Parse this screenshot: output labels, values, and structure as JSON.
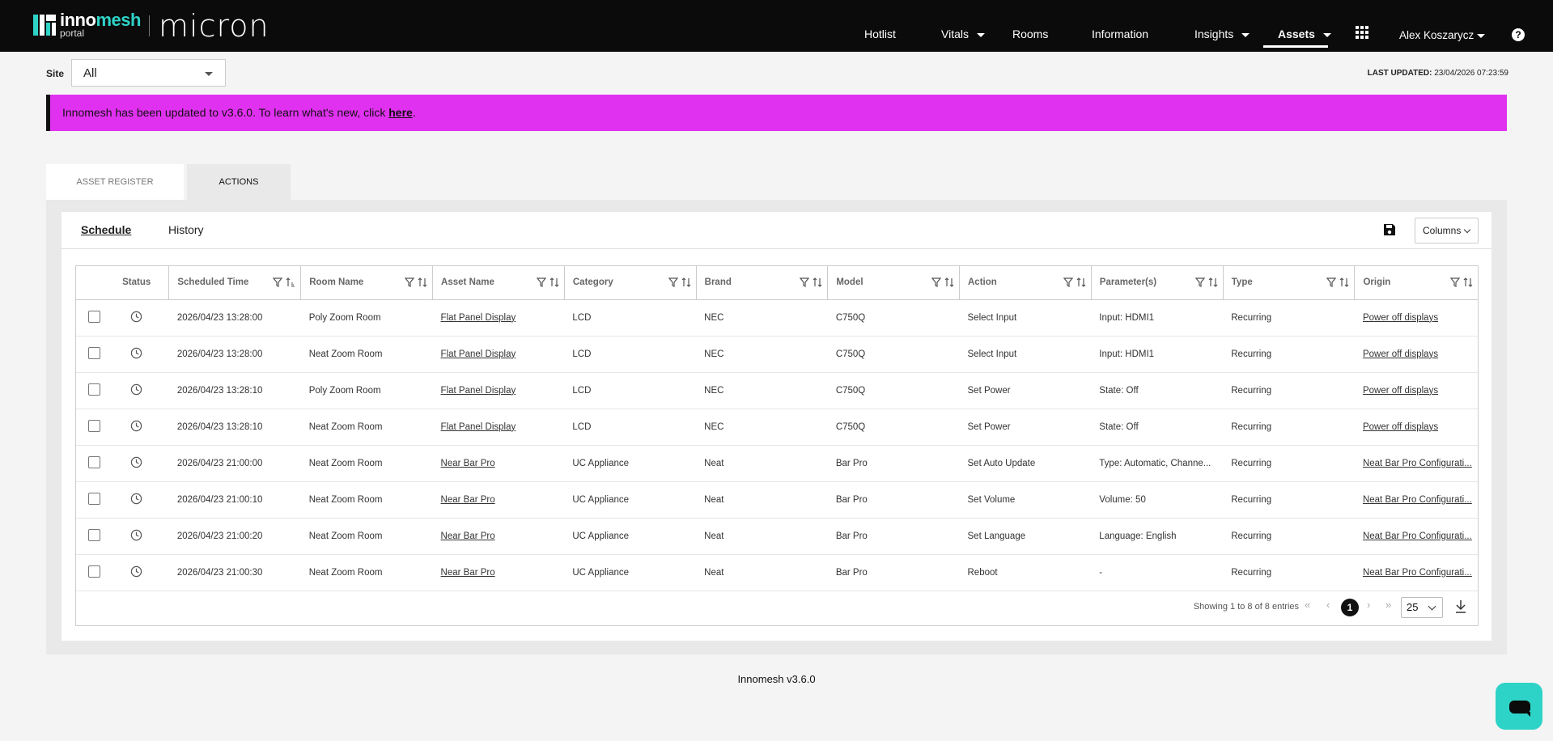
{
  "header": {
    "logo_brand_a": "inno",
    "logo_brand_b": "mesh",
    "logo_sub": "portal",
    "product": "micron",
    "nav": [
      {
        "label": "Hotlist",
        "caret": false,
        "active": false
      },
      {
        "label": "Vitals",
        "caret": true,
        "active": false
      },
      {
        "label": "Rooms",
        "caret": false,
        "active": false
      },
      {
        "label": "Information",
        "caret": false,
        "active": false
      },
      {
        "label": "Insights",
        "caret": true,
        "active": false
      },
      {
        "label": "Assets",
        "caret": true,
        "active": true
      }
    ],
    "user": "Alex Koszarycz",
    "help_icon": "?"
  },
  "site": {
    "label": "Site",
    "value": "All"
  },
  "last_updated": {
    "label": "LAST UPDATED:",
    "value": "23/04/2026 07:23:59"
  },
  "banner": {
    "text": "Innomesh has been updated to v3.6.0. To learn what's new, click ",
    "link": "here",
    "tail": ".",
    "color": "#e131f0"
  },
  "tabs": {
    "register": "ASSET REGISTER",
    "actions": "ACTIONS"
  },
  "subtabs": {
    "schedule": "Schedule",
    "history": "History"
  },
  "columns_button": "Columns",
  "table": {
    "headers": [
      "Status",
      "Scheduled Time",
      "Room Name",
      "Asset Name",
      "Category",
      "Brand",
      "Model",
      "Action",
      "Parameter(s)",
      "Type",
      "Origin"
    ],
    "rows": [
      [
        "2026/04/23 13:28:00",
        "Poly Zoom Room",
        "Flat Panel Display",
        "LCD",
        "NEC",
        "C750Q",
        "Select Input",
        "Input: HDMI1",
        "Recurring",
        "Power off displays"
      ],
      [
        "2026/04/23 13:28:00",
        "Neat Zoom Room",
        "Flat Panel Display",
        "LCD",
        "NEC",
        "C750Q",
        "Select Input",
        "Input: HDMI1",
        "Recurring",
        "Power off displays"
      ],
      [
        "2026/04/23 13:28:10",
        "Poly Zoom Room",
        "Flat Panel Display",
        "LCD",
        "NEC",
        "C750Q",
        "Set Power",
        "State: Off",
        "Recurring",
        "Power off displays"
      ],
      [
        "2026/04/23 13:28:10",
        "Neat Zoom Room",
        "Flat Panel Display",
        "LCD",
        "NEC",
        "C750Q",
        "Set Power",
        "State: Off",
        "Recurring",
        "Power off displays"
      ],
      [
        "2026/04/23 21:00:00",
        "Neat Zoom Room",
        "Near Bar Pro",
        "UC Appliance",
        "Neat",
        "Bar Pro",
        "Set Auto Update",
        "Type: Automatic, Channe...",
        "Recurring",
        "Neat Bar Pro Configurati..."
      ],
      [
        "2026/04/23 21:00:10",
        "Neat Zoom Room",
        "Near Bar Pro",
        "UC Appliance",
        "Neat",
        "Bar Pro",
        "Set Volume",
        "Volume: 50",
        "Recurring",
        "Neat Bar Pro Configurati..."
      ],
      [
        "2026/04/23 21:00:20",
        "Neat Zoom Room",
        "Near Bar Pro",
        "UC Appliance",
        "Neat",
        "Bar Pro",
        "Set Language",
        "Language: English",
        "Recurring",
        "Neat Bar Pro Configurati..."
      ],
      [
        "2026/04/23 21:00:30",
        "Neat Zoom Room",
        "Near Bar Pro",
        "UC Appliance",
        "Neat",
        "Bar Pro",
        "Reboot",
        "-",
        "Recurring",
        "Neat Bar Pro Configurati..."
      ]
    ]
  },
  "pagination": {
    "info": "Showing 1 to 8 of 8 entries",
    "first": "«",
    "prev": "‹",
    "next": "›",
    "last": "»",
    "page": "1",
    "page_size": "25"
  },
  "footer": "Innomesh v3.6.0"
}
